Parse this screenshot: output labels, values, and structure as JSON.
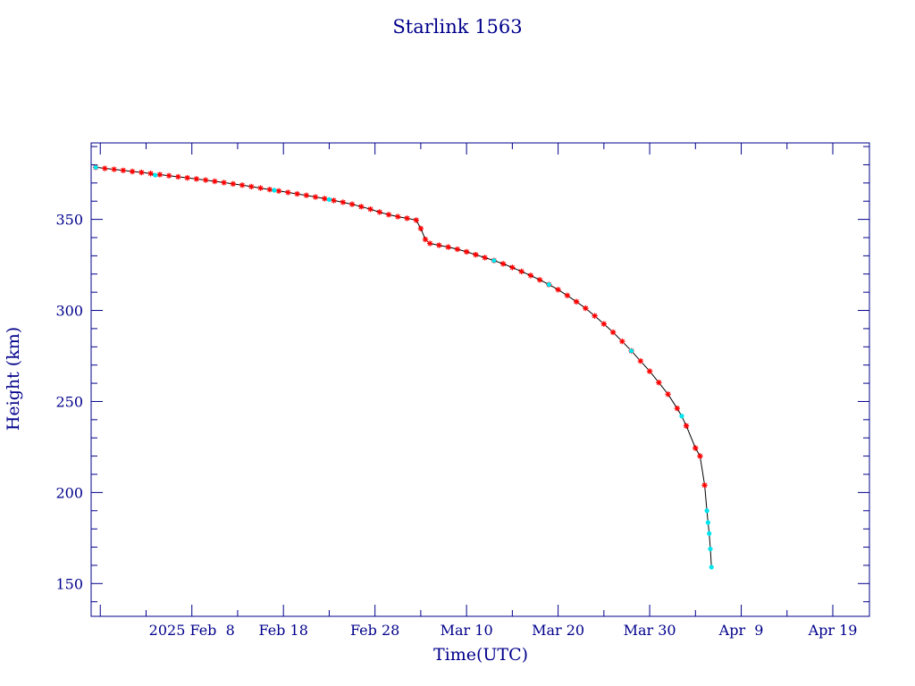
{
  "chart_data": {
    "type": "scatter",
    "title": "Starlink 1563",
    "xlabel": "Time(UTC)",
    "ylabel": "Height (km)",
    "x_range": [
      "2025-01-28",
      "2025-04-23"
    ],
    "y_range": [
      132,
      392
    ],
    "x_ticks": [
      {
        "label": "2025 Feb  8",
        "date": "2025-02-08"
      },
      {
        "label": "Feb 18",
        "date": "2025-02-18"
      },
      {
        "label": "Feb 28",
        "date": "2025-02-28"
      },
      {
        "label": "Mar 10",
        "date": "2025-03-10"
      },
      {
        "label": "Mar 20",
        "date": "2025-03-20"
      },
      {
        "label": "Mar 30",
        "date": "2025-03-30"
      },
      {
        "label": "Apr  9",
        "date": "2025-04-09"
      },
      {
        "label": "Apr 19",
        "date": "2025-04-19"
      }
    ],
    "y_ticks": [
      150,
      200,
      250,
      300,
      350
    ],
    "colors": {
      "axis": "#00008b",
      "line": "#000000",
      "primary_markers": "#ff0000",
      "secondary_markers": "#00e5ee"
    },
    "series": [
      {
        "marker": "red-asterisk",
        "points": [
          [
            "2025-01-28T12:00",
            378.6
          ],
          [
            "2025-01-29T12:00",
            378.0
          ],
          [
            "2025-01-30T12:00",
            377.5
          ],
          [
            "2025-01-31T12:00",
            376.9
          ],
          [
            "2025-02-01T12:00",
            376.3
          ],
          [
            "2025-02-02T12:00",
            375.8
          ],
          [
            "2025-02-03T12:00",
            375.2
          ],
          [
            "2025-02-04T12:00",
            374.6
          ],
          [
            "2025-02-05T12:00",
            374.0
          ],
          [
            "2025-02-06T12:00",
            373.4
          ],
          [
            "2025-02-07T12:00",
            372.8
          ],
          [
            "2025-02-08T12:00",
            372.2
          ],
          [
            "2025-02-09T12:00",
            371.6
          ],
          [
            "2025-02-10T12:00",
            370.9
          ],
          [
            "2025-02-11T12:00",
            370.2
          ],
          [
            "2025-02-12T12:00",
            369.5
          ],
          [
            "2025-02-13T12:00",
            368.8
          ],
          [
            "2025-02-14T12:00",
            368.0
          ],
          [
            "2025-02-15T12:00",
            367.2
          ],
          [
            "2025-02-16T12:00",
            366.4
          ],
          [
            "2025-02-17T12:00",
            365.6
          ],
          [
            "2025-02-18T12:00",
            364.8
          ],
          [
            "2025-02-19T12:00",
            364.0
          ],
          [
            "2025-02-20T12:00",
            363.2
          ],
          [
            "2025-02-21T12:00",
            362.3
          ],
          [
            "2025-02-22T12:00",
            361.4
          ],
          [
            "2025-02-23T12:00",
            360.4
          ],
          [
            "2025-02-24T12:00",
            359.4
          ],
          [
            "2025-02-25T12:00",
            358.3
          ],
          [
            "2025-02-26T12:00",
            357.0
          ],
          [
            "2025-02-27T12:00",
            355.6
          ],
          [
            "2025-02-28T12:00",
            354.0
          ],
          [
            "2025-03-01T12:00",
            352.6
          ],
          [
            "2025-03-02T12:00",
            351.5
          ],
          [
            "2025-03-03T12:00",
            350.6
          ],
          [
            "2025-03-04T12:00",
            349.6
          ],
          [
            "2025-03-05T00:00",
            345.0
          ],
          [
            "2025-03-05T12:00",
            339.0
          ],
          [
            "2025-03-06T00:00",
            336.8
          ],
          [
            "2025-03-07T00:00",
            335.8
          ],
          [
            "2025-03-08T00:00",
            334.8
          ],
          [
            "2025-03-09T00:00",
            333.6
          ],
          [
            "2025-03-10T00:00",
            332.2
          ],
          [
            "2025-03-11T00:00",
            330.6
          ],
          [
            "2025-03-12T00:00",
            329.0
          ],
          [
            "2025-03-13T00:00",
            327.4
          ],
          [
            "2025-03-14T00:00",
            325.6
          ],
          [
            "2025-03-15T00:00",
            323.6
          ],
          [
            "2025-03-16T00:00",
            321.4
          ],
          [
            "2025-03-17T00:00",
            319.2
          ],
          [
            "2025-03-18T00:00",
            316.8
          ],
          [
            "2025-03-19T00:00",
            314.2
          ],
          [
            "2025-03-20T00:00",
            311.4
          ],
          [
            "2025-03-21T00:00",
            308.2
          ],
          [
            "2025-03-22T00:00",
            304.8
          ],
          [
            "2025-03-23T00:00",
            301.2
          ],
          [
            "2025-03-24T00:00",
            297.0
          ],
          [
            "2025-03-25T00:00",
            292.6
          ],
          [
            "2025-03-26T00:00",
            288.0
          ],
          [
            "2025-03-27T00:00",
            283.0
          ],
          [
            "2025-03-28T00:00",
            277.8
          ],
          [
            "2025-03-29T00:00",
            272.2
          ],
          [
            "2025-03-30T00:00",
            266.6
          ],
          [
            "2025-03-31T00:00",
            260.4
          ],
          [
            "2025-04-01T00:00",
            254.0
          ],
          [
            "2025-04-02T00:00",
            246.2
          ],
          [
            "2025-04-03T00:00",
            236.6
          ],
          [
            "2025-04-04T00:00",
            224.4
          ],
          [
            "2025-04-04T12:00",
            220.0
          ],
          [
            "2025-04-05T00:00",
            204.0
          ]
        ]
      },
      {
        "marker": "cyan-dot",
        "points": [
          [
            "2025-01-28T12:00",
            378.6
          ],
          [
            "2025-02-04T00:00",
            374.3
          ],
          [
            "2025-02-17T00:00",
            366.0
          ],
          [
            "2025-02-23T00:00",
            360.9
          ],
          [
            "2025-03-13T00:00",
            327.4
          ],
          [
            "2025-03-19T00:00",
            314.2
          ],
          [
            "2025-03-28T00:00",
            277.8
          ],
          [
            "2025-04-02T12:00",
            242.0
          ],
          [
            "2025-04-05T06:00",
            190.0
          ],
          [
            "2025-04-05T09:00",
            183.5
          ],
          [
            "2025-04-05T12:00",
            177.5
          ],
          [
            "2025-04-05T15:00",
            169.0
          ],
          [
            "2025-04-05T18:00",
            159.0
          ]
        ]
      }
    ]
  }
}
